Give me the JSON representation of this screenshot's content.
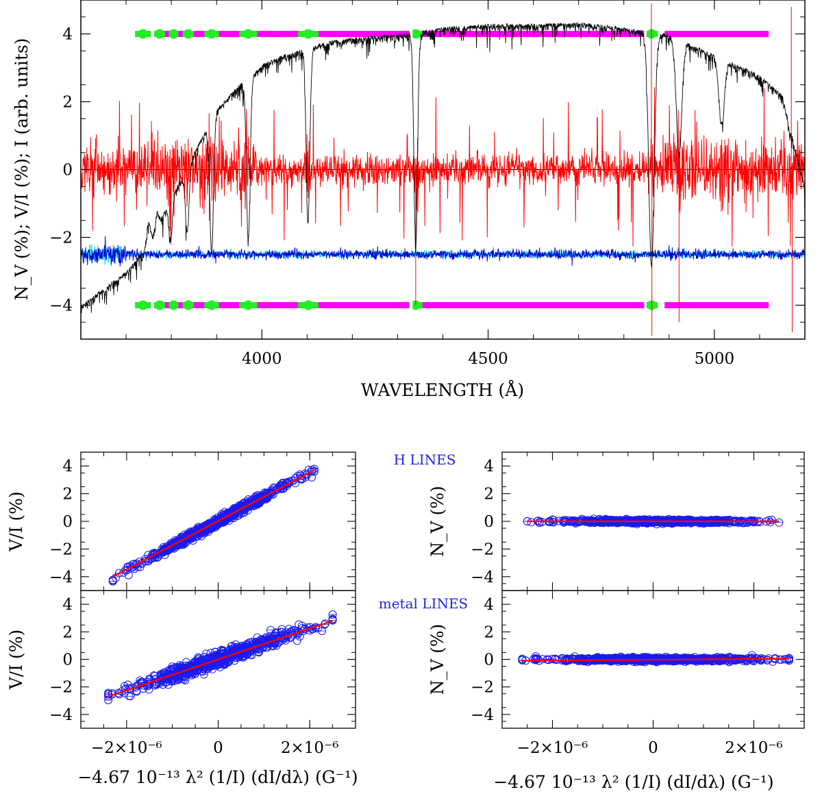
{
  "chart_data": [
    {
      "id": "spectrum",
      "type": "line",
      "xlabel": "WAVELENGTH (Å)",
      "ylabel": "N_V (%); V/I (%); I (arb. units)",
      "xlim": [
        3600,
        5200
      ],
      "ylim": [
        -5,
        5
      ],
      "xticks": [
        4000,
        4500,
        5000
      ],
      "yticks": [
        -4,
        -2,
        0,
        2,
        4
      ],
      "xtick_labels": [
        "4000",
        "4500",
        "5000"
      ],
      "ytick_labels": [
        "−4",
        "−2",
        "0",
        "2",
        "4"
      ],
      "series": [
        {
          "role": "intensity_I",
          "color": "#000000",
          "continuum": [
            [
              3600,
              -4.0
            ],
            [
              3650,
              -3.5
            ],
            [
              3700,
              -3.0
            ],
            [
              3750,
              -2.2
            ],
            [
              3800,
              -0.8
            ],
            [
              3850,
              0.5
            ],
            [
              3900,
              1.8
            ],
            [
              3950,
              2.5
            ],
            [
              4000,
              3.1
            ],
            [
              4050,
              3.4
            ],
            [
              4100,
              3.6
            ],
            [
              4150,
              3.8
            ],
            [
              4200,
              3.9
            ],
            [
              4300,
              4.0
            ],
            [
              4400,
              4.2
            ],
            [
              4500,
              4.3
            ],
            [
              4600,
              4.3
            ],
            [
              4700,
              4.35
            ],
            [
              4800,
              4.2
            ],
            [
              4900,
              4.0
            ],
            [
              5000,
              3.4
            ],
            [
              5050,
              3.1
            ],
            [
              5100,
              2.8
            ],
            [
              5150,
              2.2
            ],
            [
              5200,
              -0.5
            ]
          ],
          "absorption_lines": [
            [
              3750,
              -1.5
            ],
            [
              3770,
              -1.2
            ],
            [
              3798,
              -2.0
            ],
            [
              3835,
              -1.8
            ],
            [
              3889,
              -2.4
            ],
            [
              3970,
              -2.0
            ],
            [
              4102,
              -1.5
            ],
            [
              4340,
              -2.2
            ],
            [
              4861,
              -2.8
            ],
            [
              4922,
              0.5
            ],
            [
              5016,
              1.4
            ]
          ]
        },
        {
          "role": "stokes_V_over_I",
          "color": "#ff0000",
          "baseline": 0,
          "extreme_spikes": [
            [
              4861,
              4.9
            ],
            [
              4862,
              -4.9
            ],
            [
              4922,
              -4.5
            ],
            [
              5170,
              4.8
            ],
            [
              5172,
              -4.8
            ],
            [
              4340,
              -4.0
            ]
          ]
        },
        {
          "role": "null_N",
          "color": "#0000cc",
          "offset": -2.5
        },
        {
          "role": "null_N_error",
          "color": "#00e0ff",
          "offset": -2.5
        }
      ],
      "line_masks": {
        "levels": [
          4,
          -4
        ],
        "metal_color": "#ff00ff",
        "hydrogen_color": "#22ee22",
        "range": [
          3720,
          5120
        ],
        "hydrogen_regions": [
          [
            3720,
            3755
          ],
          [
            3762,
            3786
          ],
          [
            3795,
            3815
          ],
          [
            3825,
            3850
          ],
          [
            3873,
            3905
          ],
          [
            3950,
            3990
          ],
          [
            4080,
            4125
          ],
          [
            4325,
            4355
          ],
          [
            4848,
            4875
          ]
        ],
        "gaps": [
          [
            3755,
            3762
          ],
          [
            4327,
            4333
          ],
          [
            4845,
            4850
          ],
          [
            4875,
            4890
          ]
        ]
      }
    },
    {
      "id": "h_lines_VI",
      "type": "scatter",
      "ylabel": "V/I (%)",
      "xlim": [
        -3e-06,
        3e-06
      ],
      "ylim": [
        -5,
        5
      ],
      "yticks": [
        -4,
        -2,
        0,
        2,
        4
      ],
      "slope": 1780000.0,
      "x_range": [
        -2.3e-06,
        2.1e-06
      ],
      "scatter": 0.15,
      "fit": [
        [
          -2.3e-06,
          -4.0
        ],
        [
          2.1e-06,
          3.7
        ]
      ]
    },
    {
      "id": "h_lines_N",
      "type": "scatter",
      "ylabel": "N_V (%)",
      "xlim": [
        -3e-06,
        3e-06
      ],
      "ylim": [
        -5,
        5
      ],
      "yticks": [
        -4,
        -2,
        0,
        2,
        4
      ],
      "slope": 0.0,
      "x_range": [
        -2.5e-06,
        2.5e-06
      ],
      "scatter": 0.06,
      "fit": [
        [
          -2.5e-06,
          0.0
        ],
        [
          2.5e-06,
          0.0
        ]
      ]
    },
    {
      "id": "metal_lines_VI",
      "type": "scatter",
      "ylabel": "V/I (%)",
      "xlabel": "−4.67 10⁻¹³ λ² (1/I) (dI/dλ) (G⁻¹)",
      "xlim": [
        -3e-06,
        3e-06
      ],
      "ylim": [
        -5,
        5
      ],
      "xticks": [
        -2e-06,
        0,
        2e-06
      ],
      "xtick_labels": [
        "−2×10⁻⁶",
        "0",
        "2×10⁻⁶"
      ],
      "yticks": [
        -4,
        -2,
        0,
        2,
        4
      ],
      "slope": 1140000.0,
      "x_range": [
        -2.4e-06,
        2.5e-06
      ],
      "scatter": 0.25,
      "fit": [
        [
          -2.4e-06,
          -2.7
        ],
        [
          2.5e-06,
          2.8
        ]
      ]
    },
    {
      "id": "metal_lines_N",
      "type": "scatter",
      "ylabel": "N_V (%)",
      "xlabel": "−4.67 10⁻¹³ λ² (1/I) (dI/dλ) (G⁻¹)",
      "xlim": [
        -3e-06,
        3e-06
      ],
      "ylim": [
        -5,
        5
      ],
      "xticks": [
        -2e-06,
        0,
        2e-06
      ],
      "xtick_labels": [
        "−2×10⁻⁶",
        "0",
        "2×10⁻⁶"
      ],
      "yticks": [
        -4,
        -2,
        0,
        2,
        4
      ],
      "slope": 0.0,
      "x_range": [
        -2.6e-06,
        2.7e-06
      ],
      "scatter": 0.07,
      "fit": [
        [
          -2.6e-06,
          -0.1
        ],
        [
          2.7e-06,
          0.05
        ]
      ]
    }
  ],
  "annotations": {
    "h_lines": "H LINES",
    "metal_lines": "metal LINES"
  }
}
